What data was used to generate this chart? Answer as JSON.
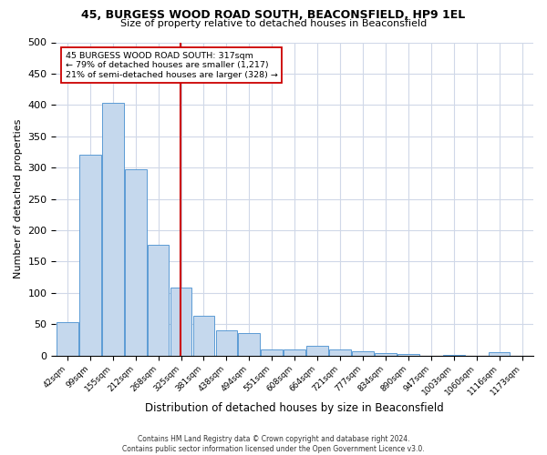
{
  "title1": "45, BURGESS WOOD ROAD SOUTH, BEACONSFIELD, HP9 1EL",
  "title2": "Size of property relative to detached houses in Beaconsfield",
  "xlabel": "Distribution of detached houses by size in Beaconsfield",
  "ylabel": "Number of detached properties",
  "footnote": "Contains HM Land Registry data © Crown copyright and database right 2024.\nContains public sector information licensed under the Open Government Licence v3.0.",
  "bar_labels": [
    "42sqm",
    "99sqm",
    "155sqm",
    "212sqm",
    "268sqm",
    "325sqm",
    "381sqm",
    "438sqm",
    "494sqm",
    "551sqm",
    "608sqm",
    "664sqm",
    "721sqm",
    "777sqm",
    "834sqm",
    "890sqm",
    "947sqm",
    "1003sqm",
    "1060sqm",
    "1116sqm",
    "1173sqm"
  ],
  "bar_values": [
    53,
    320,
    403,
    297,
    176,
    108,
    63,
    40,
    36,
    10,
    9,
    15,
    9,
    6,
    4,
    2,
    0,
    1,
    0,
    5,
    0
  ],
  "bar_color": "#c5d8ed",
  "bar_edge_color": "#5b9bd5",
  "vline_pos": 4.975,
  "vline_color": "#cc0000",
  "annotation_text": "45 BURGESS WOOD ROAD SOUTH: 317sqm\n← 79% of detached houses are smaller (1,217)\n21% of semi-detached houses are larger (328) →",
  "annotation_box_color": "#ffffff",
  "annotation_box_edge": "#cc0000",
  "ylim": [
    0,
    500
  ],
  "yticks": [
    0,
    50,
    100,
    150,
    200,
    250,
    300,
    350,
    400,
    450,
    500
  ],
  "background_color": "#ffffff",
  "grid_color": "#d0d8e8"
}
